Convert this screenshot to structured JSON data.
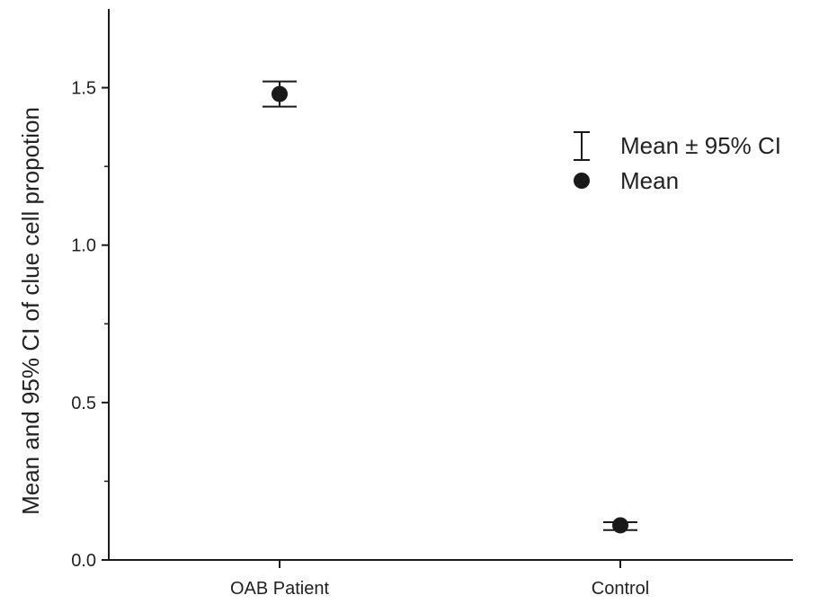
{
  "chart_data": {
    "type": "scatter",
    "title": "",
    "xlabel": "",
    "ylabel": "Mean and 95% CI of clue cell propotion",
    "categories": [
      "OAB Patient",
      "Control"
    ],
    "series": [
      {
        "name": "Mean",
        "values": [
          1.48,
          0.11
        ],
        "ci_low": [
          1.44,
          0.095
        ],
        "ci_high": [
          1.52,
          0.12
        ]
      }
    ],
    "ylim": [
      0,
      1.75
    ],
    "yticks": [
      0.0,
      0.5,
      1.0,
      1.5
    ],
    "ytick_labels": [
      "0.0",
      "0.5",
      "1.0",
      "1.5"
    ],
    "grid": false,
    "legend_placement": "upper-right",
    "legend": {
      "errorbar_label": "Mean ± 95% CI",
      "marker_label": "Mean"
    },
    "colors": {
      "marker": "#1a1a1a",
      "axis": "#1a1a1a"
    }
  }
}
